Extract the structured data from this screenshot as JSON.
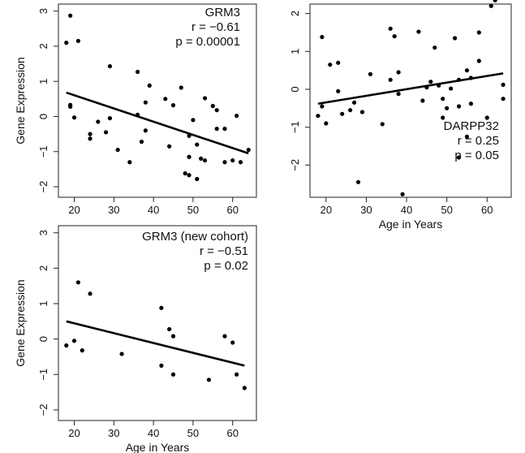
{
  "chart_data": [
    {
      "type": "scatter",
      "title": "GRM3",
      "annotations": [
        "GRM3",
        "r = −0.61",
        "p = 0.00001"
      ],
      "xlabel": "",
      "ylabel": "Gene Expression",
      "xlim": [
        16,
        66
      ],
      "ylim": [
        -2.3,
        3.2
      ],
      "xticks": [
        "20",
        "30",
        "40",
        "50",
        "60"
      ],
      "yticks": [
        "−2",
        "−1",
        "0",
        "1",
        "2",
        "3"
      ],
      "fit_line": {
        "x": [
          18,
          64
        ],
        "y": [
          0.68,
          -1.05
        ]
      },
      "points": [
        [
          18,
          2.1
        ],
        [
          19,
          2.87
        ],
        [
          21,
          2.15
        ],
        [
          19,
          0.33
        ],
        [
          19,
          0.28
        ],
        [
          20,
          -0.03
        ],
        [
          24,
          -0.5
        ],
        [
          24,
          -0.63
        ],
        [
          26,
          -0.15
        ],
        [
          28,
          -0.45
        ],
        [
          29,
          1.43
        ],
        [
          29,
          -0.05
        ],
        [
          31,
          -0.95
        ],
        [
          34,
          -1.3
        ],
        [
          36,
          1.27
        ],
        [
          36,
          0.05
        ],
        [
          37,
          -0.72
        ],
        [
          38,
          0.4
        ],
        [
          38,
          -0.4
        ],
        [
          39,
          0.88
        ],
        [
          43,
          0.5
        ],
        [
          44,
          -0.85
        ],
        [
          45,
          0.32
        ],
        [
          47,
          0.82
        ],
        [
          48,
          -1.62
        ],
        [
          49,
          -1.67
        ],
        [
          49,
          -1.15
        ],
        [
          49,
          -0.55
        ],
        [
          50,
          -0.1
        ],
        [
          51,
          -0.8
        ],
        [
          51,
          -1.78
        ],
        [
          52,
          -1.2
        ],
        [
          53,
          -1.25
        ],
        [
          53,
          0.52
        ],
        [
          55,
          0.3
        ],
        [
          56,
          -0.35
        ],
        [
          56,
          0.18
        ],
        [
          58,
          -0.35
        ],
        [
          58,
          -1.3
        ],
        [
          60,
          -1.25
        ],
        [
          61,
          0.02
        ],
        [
          62,
          -1.3
        ],
        [
          64,
          -0.95
        ]
      ]
    },
    {
      "type": "scatter",
      "title": "DARPP32",
      "annotations": [
        "DARPP32",
        "r = 0.25",
        "p = 0.05"
      ],
      "xlabel": "Age in Years",
      "ylabel": "",
      "xlim": [
        16,
        66
      ],
      "ylim": [
        -2.85,
        2.25
      ],
      "xticks": [
        "20",
        "30",
        "40",
        "50",
        "60"
      ],
      "yticks": [
        "−2",
        "−1",
        "0",
        "1",
        "2"
      ],
      "fit_line": {
        "x": [
          18,
          64
        ],
        "y": [
          -0.38,
          0.42
        ]
      },
      "points": [
        [
          18,
          -0.7
        ],
        [
          19,
          1.38
        ],
        [
          19,
          -0.45
        ],
        [
          20,
          -0.9
        ],
        [
          21,
          0.65
        ],
        [
          23,
          0.7
        ],
        [
          23,
          -0.05
        ],
        [
          24,
          -0.65
        ],
        [
          26,
          -0.55
        ],
        [
          27,
          -0.35
        ],
        [
          28,
          -2.45
        ],
        [
          29,
          -0.6
        ],
        [
          31,
          0.4
        ],
        [
          34,
          -0.92
        ],
        [
          36,
          1.6
        ],
        [
          36,
          0.25
        ],
        [
          37,
          1.4
        ],
        [
          38,
          0.45
        ],
        [
          38,
          -0.12
        ],
        [
          39,
          -2.77
        ],
        [
          43,
          1.52
        ],
        [
          44,
          -0.3
        ],
        [
          45,
          0.05
        ],
        [
          46,
          0.2
        ],
        [
          47,
          1.1
        ],
        [
          48,
          0.1
        ],
        [
          49,
          -0.25
        ],
        [
          49,
          -0.75
        ],
        [
          50,
          -0.5
        ],
        [
          51,
          0.02
        ],
        [
          52,
          1.35
        ],
        [
          53,
          -1.8
        ],
        [
          53,
          0.25
        ],
        [
          53,
          -0.45
        ],
        [
          55,
          -1.25
        ],
        [
          55,
          0.5
        ],
        [
          56,
          0.3
        ],
        [
          56,
          -0.38
        ],
        [
          58,
          0.75
        ],
        [
          58,
          1.5
        ],
        [
          60,
          -0.75
        ],
        [
          61,
          2.2
        ],
        [
          62,
          2.35
        ],
        [
          64,
          0.12
        ],
        [
          64,
          -0.25
        ]
      ]
    },
    {
      "type": "scatter",
      "title": "GRM3 (new cohort)",
      "annotations": [
        "GRM3 (new cohort)",
        "r = −0.51",
        "p = 0.02"
      ],
      "xlabel": "Age in Years",
      "ylabel": "Gene Expression",
      "xlim": [
        16,
        66
      ],
      "ylim": [
        -2.3,
        3.2
      ],
      "xticks": [
        "20",
        "30",
        "40",
        "50",
        "60"
      ],
      "yticks": [
        "−2",
        "−1",
        "0",
        "1",
        "2",
        "3"
      ],
      "fit_line": {
        "x": [
          18,
          63
        ],
        "y": [
          0.5,
          -0.75
        ]
      },
      "points": [
        [
          18,
          -0.18
        ],
        [
          20,
          -0.05
        ],
        [
          21,
          1.6
        ],
        [
          22,
          -0.32
        ],
        [
          24,
          1.28
        ],
        [
          32,
          -0.42
        ],
        [
          42,
          0.88
        ],
        [
          42,
          -0.75
        ],
        [
          44,
          0.28
        ],
        [
          45,
          0.08
        ],
        [
          45,
          -1.0
        ],
        [
          54,
          -1.15
        ],
        [
          58,
          0.08
        ],
        [
          60,
          -0.1
        ],
        [
          61,
          -1.0
        ],
        [
          63,
          -1.38
        ]
      ]
    }
  ]
}
